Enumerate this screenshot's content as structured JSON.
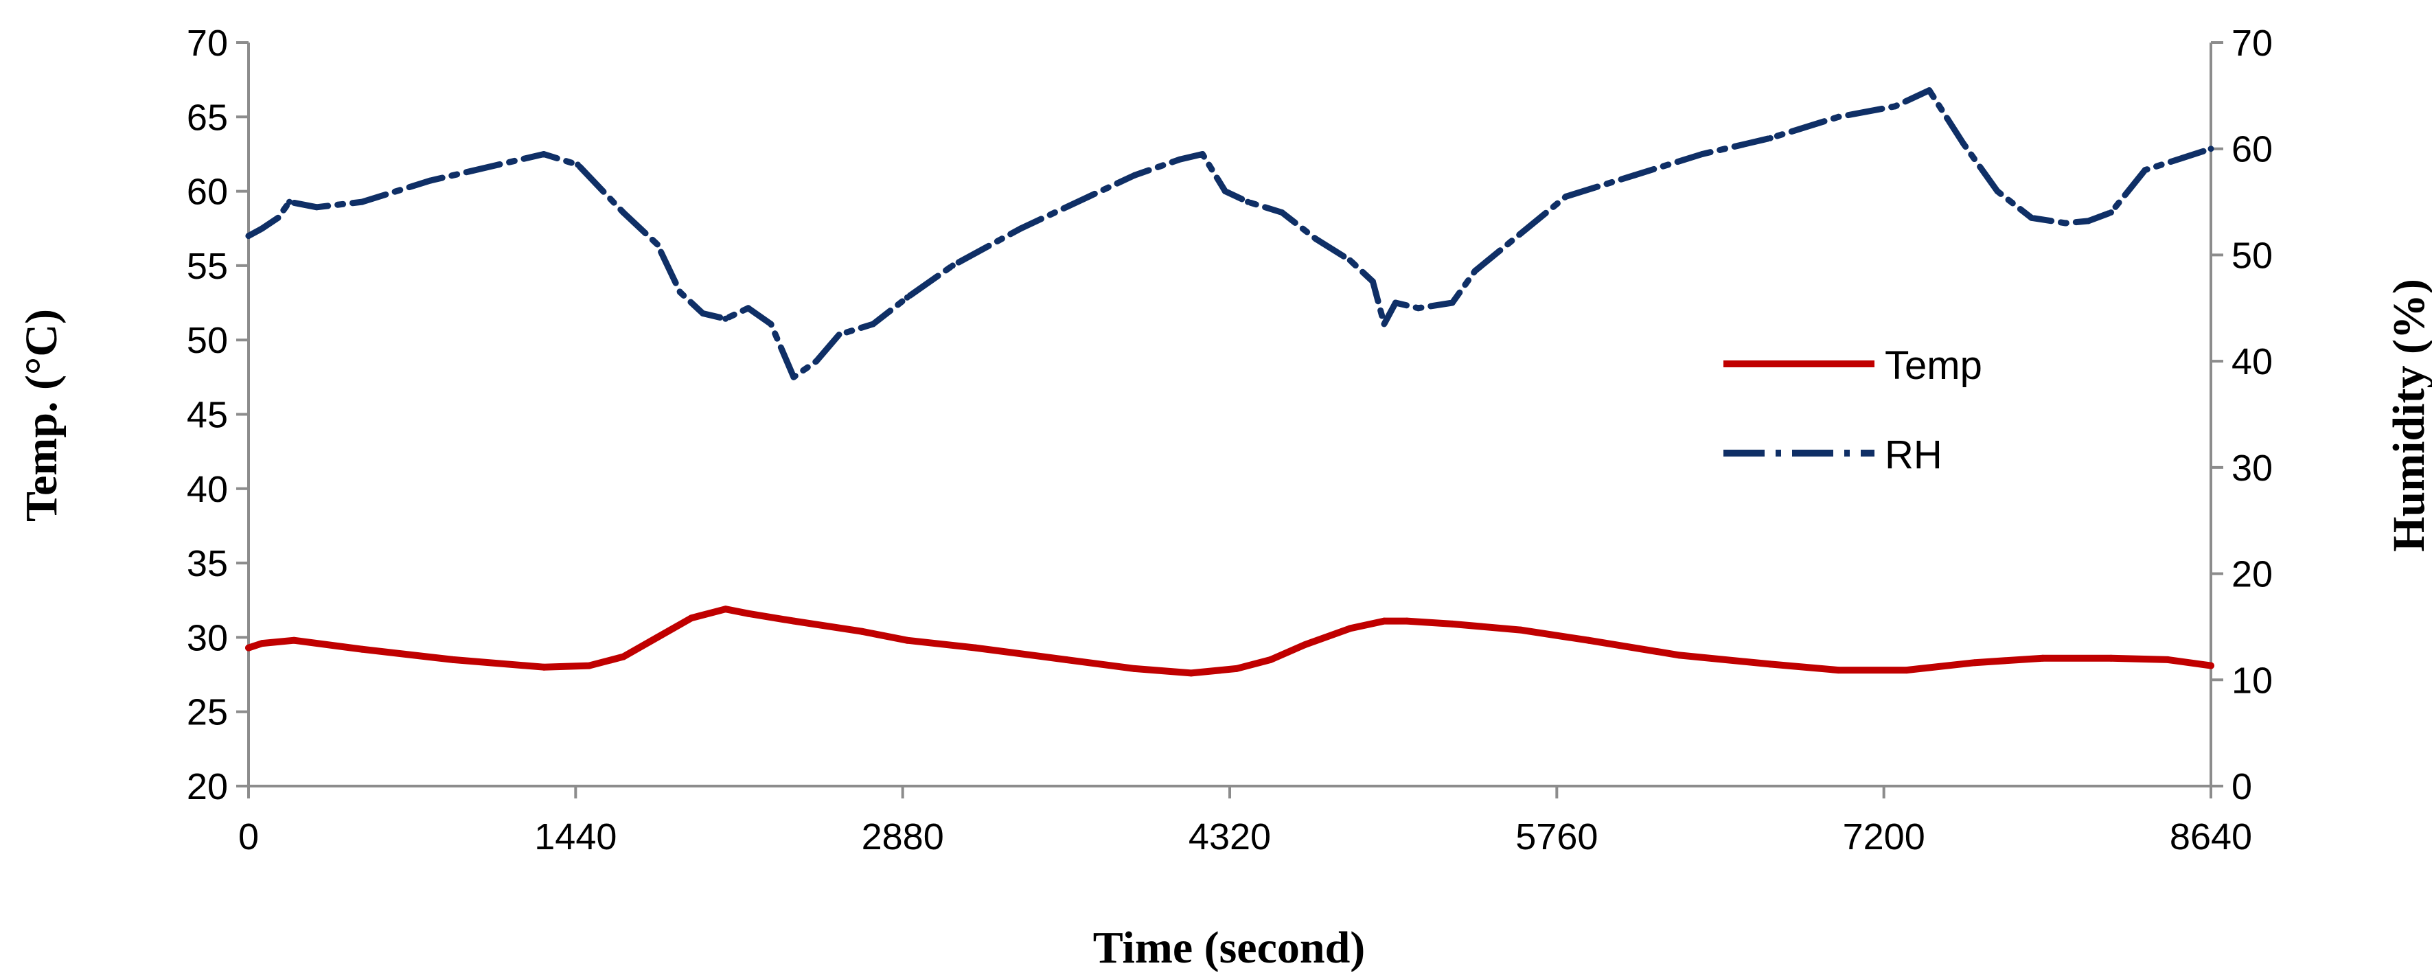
{
  "chart_data": {
    "type": "line",
    "title": "",
    "xlabel": "Time (second)",
    "ylabel_left": "Temp. (°C)",
    "ylabel_right": "Humidity (%)",
    "xlim": [
      0,
      8640
    ],
    "ylim_left": [
      20,
      70
    ],
    "ylim_right": [
      0,
      70
    ],
    "x_ticks": [
      "0",
      "1440",
      "2880",
      "4320",
      "5760",
      "7200",
      "8640"
    ],
    "y_ticks_left": [
      "20",
      "25",
      "30",
      "35",
      "40",
      "45",
      "50",
      "55",
      "60",
      "65",
      "70"
    ],
    "y_ticks_right": [
      "0",
      "10",
      "20",
      "30",
      "40",
      "50",
      "60",
      "70"
    ],
    "grid": false,
    "legend_position": "right",
    "series": [
      {
        "name": "Temp",
        "axis": "left",
        "color": "#c00000",
        "style": "solid",
        "x": [
          0,
          60,
          200,
          500,
          900,
          1300,
          1500,
          1650,
          1800,
          1950,
          2100,
          2200,
          2400,
          2700,
          2900,
          3200,
          3600,
          3900,
          4150,
          4350,
          4500,
          4650,
          4850,
          5000,
          5100,
          5300,
          5600,
          5900,
          6300,
          6700,
          7000,
          7300,
          7600,
          7900,
          8200,
          8450,
          8640
        ],
        "values": [
          29.3,
          29.6,
          29.8,
          29.2,
          28.5,
          28.0,
          28.1,
          28.7,
          30.0,
          31.3,
          31.9,
          31.6,
          31.1,
          30.4,
          29.8,
          29.3,
          28.5,
          27.9,
          27.6,
          27.9,
          28.5,
          29.5,
          30.6,
          31.1,
          31.1,
          30.9,
          30.5,
          29.8,
          28.8,
          28.2,
          27.8,
          27.8,
          28.3,
          28.6,
          28.6,
          28.5,
          28.1
        ]
      },
      {
        "name": "RH",
        "axis": "right",
        "color": "#0f2f66",
        "style": "dash-dot",
        "x": [
          0,
          60,
          130,
          180,
          300,
          500,
          800,
          1100,
          1300,
          1450,
          1650,
          1800,
          1900,
          2000,
          2100,
          2200,
          2300,
          2400,
          2500,
          2600,
          2750,
          2900,
          3100,
          3400,
          3700,
          3900,
          4100,
          4200,
          4300,
          4400,
          4550,
          4700,
          4850,
          4950,
          5000,
          5050,
          5150,
          5300,
          5400,
          5600,
          5800,
          6100,
          6400,
          6700,
          7000,
          7250,
          7400,
          7550,
          7700,
          7850,
          8000,
          8100,
          8200,
          8350,
          8640
        ],
        "values": [
          51.8,
          52.5,
          53.5,
          55.0,
          54.5,
          55.0,
          57.0,
          58.5,
          59.5,
          58.5,
          54.0,
          51.0,
          46.5,
          44.5,
          44.0,
          45.0,
          43.5,
          38.5,
          40.0,
          42.5,
          43.5,
          46.0,
          49.0,
          52.5,
          55.5,
          57.5,
          59.0,
          59.5,
          56.0,
          55.0,
          54.0,
          51.5,
          49.5,
          47.5,
          43.5,
          45.5,
          45.0,
          45.5,
          48.5,
          52.0,
          55.5,
          57.5,
          59.5,
          61.0,
          63.0,
          64.0,
          65.5,
          60.5,
          56.0,
          53.5,
          53.0,
          53.2,
          54.0,
          58.0,
          60.0
        ]
      }
    ]
  }
}
